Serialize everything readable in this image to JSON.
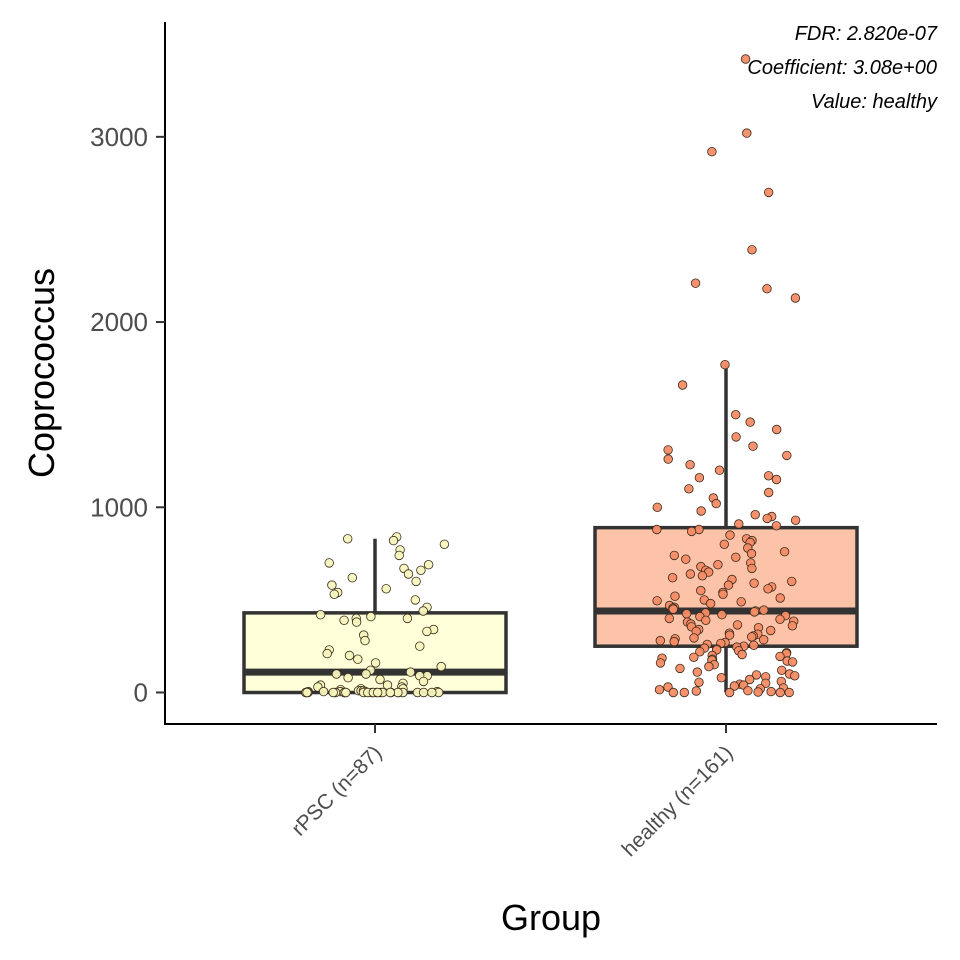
{
  "chart_data": {
    "type": "boxplot",
    "xlabel": "Group",
    "ylabel": "Coprococcus",
    "ylim": [
      -170,
      3620
    ],
    "yticks": [
      0,
      1000,
      2000,
      3000
    ],
    "grid": false,
    "legend": "none",
    "annotations": [
      "FDR: 2.820e-07",
      "Coefficient: 3.08e+00",
      "Value: healthy"
    ],
    "groups": [
      {
        "label": "rPSC (n=87)",
        "fill": "#ffffd9",
        "point_fill": "#f5f5bd",
        "stats": {
          "whisker_low": 0,
          "q1": 0,
          "median": 110,
          "q3": 430,
          "whisker_high": 830
        },
        "points": [
          840,
          830,
          820,
          800,
          770,
          740,
          700,
          690,
          670,
          660,
          640,
          620,
          600,
          580,
          560,
          540,
          530,
          500,
          460,
          440,
          420,
          410,
          400,
          400,
          390,
          380,
          340,
          330,
          310,
          280,
          250,
          230,
          210,
          200,
          180,
          160,
          140,
          120,
          110,
          100,
          100,
          90,
          90,
          80,
          70,
          60,
          50,
          40,
          40,
          30,
          30,
          20,
          20,
          15,
          10,
          10,
          10,
          5,
          5,
          5,
          5,
          5,
          0,
          0,
          0,
          0,
          0,
          0,
          0,
          0,
          0,
          0,
          0,
          0,
          0,
          0,
          0,
          0,
          0,
          0,
          0,
          0,
          0,
          0,
          0,
          0,
          0
        ]
      },
      {
        "label": "healthy (n=161)",
        "fill": "#fdc3a9",
        "point_fill": "#f58c65",
        "stats": {
          "whisker_low": 0,
          "q1": 250,
          "median": 440,
          "q3": 890,
          "whisker_high": 1770
        },
        "points": [
          3420,
          3020,
          2920,
          2700,
          2390,
          2210,
          2180,
          2130,
          1770,
          1660,
          1500,
          1460,
          1420,
          1380,
          1330,
          1310,
          1280,
          1260,
          1230,
          1200,
          1170,
          1160,
          1150,
          1100,
          1080,
          1050,
          1020,
          1000,
          980,
          960,
          950,
          940,
          930,
          910,
          900,
          880,
          880,
          870,
          850,
          830,
          820,
          810,
          800,
          780,
          760,
          750,
          740,
          730,
          720,
          700,
          690,
          680,
          670,
          660,
          650,
          640,
          630,
          620,
          610,
          600,
          590,
          580,
          570,
          560,
          550,
          540,
          530,
          520,
          510,
          500,
          495,
          490,
          480,
          470,
          460,
          455,
          450,
          445,
          440,
          435,
          430,
          425,
          420,
          415,
          410,
          400,
          395,
          390,
          385,
          380,
          370,
          365,
          360,
          355,
          350,
          340,
          335,
          330,
          320,
          315,
          310,
          305,
          300,
          295,
          290,
          285,
          280,
          275,
          270,
          265,
          260,
          255,
          250,
          245,
          240,
          235,
          230,
          225,
          220,
          215,
          210,
          205,
          200,
          195,
          190,
          185,
          180,
          175,
          170,
          165,
          160,
          150,
          140,
          130,
          120,
          110,
          100,
          95,
          90,
          85,
          80,
          70,
          60,
          55,
          50,
          45,
          40,
          35,
          30,
          25,
          20,
          15,
          10,
          8,
          5,
          3,
          0,
          0,
          0,
          0,
          0
        ]
      }
    ]
  }
}
